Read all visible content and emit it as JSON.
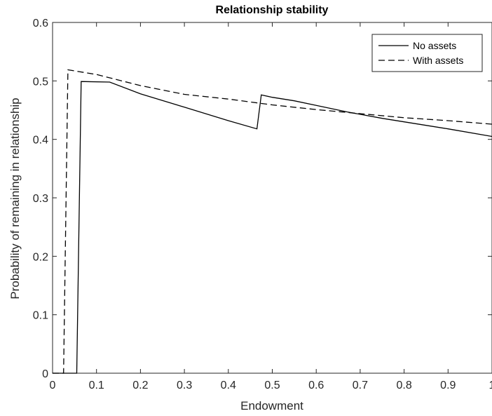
{
  "chart_data": {
    "type": "line",
    "title": "Relationship stability",
    "xlabel": "Endowment",
    "ylabel": "Probability of remaining in relationship",
    "xlim": [
      0,
      1
    ],
    "ylim": [
      0,
      0.6
    ],
    "xticks": [
      0,
      0.1,
      0.2,
      0.3,
      0.4,
      0.5,
      0.6,
      0.7,
      0.8,
      0.9,
      1
    ],
    "xtick_labels": [
      "0",
      "0.1",
      "0.2",
      "0.3",
      "0.4",
      "0.5",
      "0.6",
      "0.7",
      "0.8",
      "0.9",
      "1"
    ],
    "yticks": [
      0,
      0.1,
      0.2,
      0.3,
      0.4,
      0.5,
      0.6
    ],
    "ytick_labels": [
      "0",
      "0.1",
      "0.2",
      "0.3",
      "0.4",
      "0.5",
      "0.6"
    ],
    "grid": false,
    "legend_position": "top-right",
    "series": [
      {
        "name": "No assets",
        "line_style": "solid",
        "color": "#000000",
        "x": [
          0,
          0.055,
          0.055,
          0.065,
          0.13,
          0.2,
          0.3,
          0.4,
          0.465,
          0.475,
          0.5,
          0.55,
          0.6,
          0.67,
          0.75,
          0.8,
          0.9,
          1.0
        ],
        "y": [
          0,
          0,
          0,
          0.499,
          0.498,
          0.478,
          0.455,
          0.432,
          0.418,
          0.476,
          0.472,
          0.466,
          0.458,
          0.447,
          0.436,
          0.43,
          0.418,
          0.405
        ]
      },
      {
        "name": "With assets",
        "line_style": "dashed",
        "color": "#000000",
        "x": [
          0,
          0.025,
          0.025,
          0.035,
          0.1,
          0.2,
          0.3,
          0.4,
          0.5,
          0.6,
          0.7,
          0.8,
          0.9,
          1.0
        ],
        "y": [
          0,
          0,
          0,
          0.519,
          0.511,
          0.492,
          0.477,
          0.469,
          0.459,
          0.451,
          0.444,
          0.437,
          0.432,
          0.426
        ]
      }
    ]
  }
}
